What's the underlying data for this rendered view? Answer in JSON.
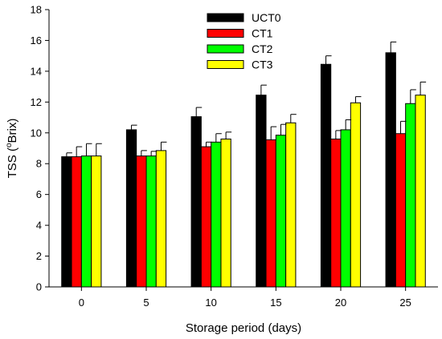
{
  "chart_data": {
    "type": "bar",
    "title": "",
    "xlabel": "Storage period (days)",
    "ylabel_parts": {
      "prefix": "TSS (",
      "superscript": "o",
      "suffix": "Brix)"
    },
    "categories": [
      "0",
      "5",
      "10",
      "15",
      "20",
      "25"
    ],
    "ylim": [
      0,
      18
    ],
    "yticks": [
      0,
      2,
      4,
      6,
      8,
      10,
      12,
      14,
      16,
      18
    ],
    "grid": false,
    "legend_position": "top-center",
    "series": [
      {
        "name": "UCT0",
        "color": "#000000",
        "values": [
          8.45,
          10.2,
          11.05,
          12.45,
          14.45,
          15.2
        ],
        "errors": [
          0.25,
          0.3,
          0.6,
          0.65,
          0.55,
          0.7
        ]
      },
      {
        "name": "CT1",
        "color": "#ff0000",
        "values": [
          8.45,
          8.5,
          9.1,
          9.55,
          9.6,
          9.95
        ],
        "errors": [
          0.65,
          0.35,
          0.3,
          0.85,
          0.55,
          0.8
        ]
      },
      {
        "name": "CT2",
        "color": "#00ff00",
        "values": [
          8.5,
          8.5,
          9.4,
          9.85,
          10.2,
          11.9
        ],
        "errors": [
          0.8,
          0.3,
          0.55,
          0.7,
          0.65,
          0.9
        ]
      },
      {
        "name": "CT3",
        "color": "#ffff00",
        "values": [
          8.5,
          8.85,
          9.6,
          10.65,
          11.95,
          12.45
        ],
        "errors": [
          0.8,
          0.55,
          0.45,
          0.55,
          0.4,
          0.85
        ]
      }
    ]
  }
}
